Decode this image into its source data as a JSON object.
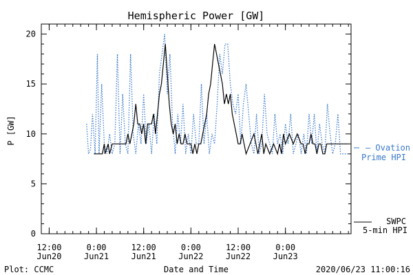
{
  "chart_data": {
    "type": "line",
    "title": "Hemispheric Power [GW]",
    "xlabel": "Date and Time",
    "ylabel": "P [GW]",
    "ylim": [
      0,
      21
    ],
    "yticks": [
      0,
      5,
      10,
      15,
      20
    ],
    "xlim": [
      "2020-06-20T10:00",
      "2020-06-23T16:40"
    ],
    "xticks": [
      {
        "at": "2020-06-20T12:00",
        "line1": "12:00",
        "line2": "Jun20"
      },
      {
        "at": "2020-06-21T00:00",
        "line1": "0:00",
        "line2": "Jun21"
      },
      {
        "at": "2020-06-21T12:00",
        "line1": "12:00",
        "line2": "Jun21"
      },
      {
        "at": "2020-06-22T00:00",
        "line1": "0:00",
        "line2": "Jun22"
      },
      {
        "at": "2020-06-22T12:00",
        "line1": "12:00",
        "line2": "Jun22"
      },
      {
        "at": "2020-06-23T00:00",
        "line1": "0:00",
        "line2": "Jun23"
      }
    ],
    "series": [
      {
        "name": "Ovation Prime HPI",
        "legend_line1": "— Ovation",
        "legend_line2": "Prime HPI",
        "color": "#3a78c8",
        "style": "dotted",
        "x": [
          "2020-06-20T21:30",
          "2020-06-20T22:00",
          "2020-06-20T22:30",
          "2020-06-20T23:00",
          "2020-06-20T23:40",
          "2020-06-21T00:15",
          "2020-06-21T00:40",
          "2020-06-21T01:20",
          "2020-06-21T02:00",
          "2020-06-21T02:40",
          "2020-06-21T03:20",
          "2020-06-21T04:00",
          "2020-06-21T04:40",
          "2020-06-21T05:20",
          "2020-06-21T06:00",
          "2020-06-21T06:40",
          "2020-06-21T07:20",
          "2020-06-21T08:00",
          "2020-06-21T08:40",
          "2020-06-21T09:20",
          "2020-06-21T10:00",
          "2020-06-21T10:40",
          "2020-06-21T11:20",
          "2020-06-21T12:00",
          "2020-06-21T12:40",
          "2020-06-21T13:20",
          "2020-06-21T14:00",
          "2020-06-21T14:40",
          "2020-06-21T15:20",
          "2020-06-21T16:00",
          "2020-06-21T16:40",
          "2020-06-21T17:20",
          "2020-06-21T18:00",
          "2020-06-21T18:40",
          "2020-06-21T19:20",
          "2020-06-21T20:00",
          "2020-06-21T20:40",
          "2020-06-21T21:20",
          "2020-06-21T22:00",
          "2020-06-21T22:40",
          "2020-06-21T23:20",
          "2020-06-22T00:00",
          "2020-06-22T00:40",
          "2020-06-22T01:20",
          "2020-06-22T02:00",
          "2020-06-22T02:40",
          "2020-06-22T03:20",
          "2020-06-22T04:00",
          "2020-06-22T04:40",
          "2020-06-22T05:20",
          "2020-06-22T06:00",
          "2020-06-22T06:40",
          "2020-06-22T07:20",
          "2020-06-22T08:00",
          "2020-06-22T08:40",
          "2020-06-22T09:20",
          "2020-06-22T10:00",
          "2020-06-22T10:40",
          "2020-06-22T11:20",
          "2020-06-22T12:00",
          "2020-06-22T12:40",
          "2020-06-22T13:20",
          "2020-06-22T14:00",
          "2020-06-22T14:40",
          "2020-06-22T15:20",
          "2020-06-22T16:00",
          "2020-06-22T16:40",
          "2020-06-22T17:20",
          "2020-06-22T18:00",
          "2020-06-22T18:40",
          "2020-06-22T19:20",
          "2020-06-22T20:00",
          "2020-06-22T20:40",
          "2020-06-22T21:20",
          "2020-06-22T22:00",
          "2020-06-22T22:40",
          "2020-06-22T23:20",
          "2020-06-23T00:00",
          "2020-06-23T00:40",
          "2020-06-23T01:20",
          "2020-06-23T02:00",
          "2020-06-23T02:40",
          "2020-06-23T03:20",
          "2020-06-23T04:00",
          "2020-06-23T04:40",
          "2020-06-23T05:20",
          "2020-06-23T06:00",
          "2020-06-23T06:40",
          "2020-06-23T07:20",
          "2020-06-23T08:00",
          "2020-06-23T08:40",
          "2020-06-23T09:20",
          "2020-06-23T10:00",
          "2020-06-23T10:40",
          "2020-06-23T11:20",
          "2020-06-23T12:00",
          "2020-06-23T12:40",
          "2020-06-23T13:20",
          "2020-06-23T14:00",
          "2020-06-23T14:40",
          "2020-06-23T15:20",
          "2020-06-23T16:00"
        ],
        "y": [
          11,
          8,
          8.5,
          12,
          8,
          18,
          8,
          15,
          9,
          8,
          10,
          8,
          9,
          18,
          8,
          14,
          9,
          8,
          18,
          10,
          8,
          11,
          9,
          14,
          9,
          11,
          8,
          12,
          9,
          16,
          18,
          20,
          14,
          18,
          11,
          8,
          12,
          9,
          13,
          8,
          10,
          8,
          12,
          9,
          9,
          15,
          9,
          12,
          8,
          10,
          9,
          13,
          18,
          16,
          19,
          19,
          15,
          13,
          12,
          14,
          9,
          13,
          15,
          12,
          9,
          8,
          12,
          8,
          9,
          14,
          10,
          9,
          8,
          12,
          9,
          10,
          8,
          11,
          9,
          12,
          8,
          9,
          10,
          8,
          10,
          8,
          12,
          9,
          12,
          8,
          11,
          9,
          8,
          13,
          10,
          8,
          9,
          12,
          8,
          8,
          8,
          8
        ]
      },
      {
        "name": "SWPC 5-min HPI",
        "legend_line1": "SWPC",
        "legend_line2": "5-min HPI",
        "color": "#000000",
        "style": "solid",
        "x": [
          "2020-06-20T23:20",
          "2020-06-21T01:30",
          "2020-06-21T02:00",
          "2020-06-21T02:10",
          "2020-06-21T03:00",
          "2020-06-21T03:20",
          "2020-06-21T04:00",
          "2020-06-21T04:20",
          "2020-06-21T07:30",
          "2020-06-21T08:00",
          "2020-06-21T08:30",
          "2020-06-21T09:00",
          "2020-06-21T09:30",
          "2020-06-21T10:00",
          "2020-06-21T10:30",
          "2020-06-21T11:00",
          "2020-06-21T11:30",
          "2020-06-21T12:00",
          "2020-06-21T12:30",
          "2020-06-21T13:00",
          "2020-06-21T14:00",
          "2020-06-21T14:30",
          "2020-06-21T15:00",
          "2020-06-21T15:30",
          "2020-06-21T16:00",
          "2020-06-21T16:30",
          "2020-06-21T17:00",
          "2020-06-21T17:30",
          "2020-06-21T18:00",
          "2020-06-21T18:30",
          "2020-06-21T19:00",
          "2020-06-21T19:30",
          "2020-06-21T20:00",
          "2020-06-21T20:30",
          "2020-06-21T21:00",
          "2020-06-21T21:30",
          "2020-06-21T22:00",
          "2020-06-21T22:30",
          "2020-06-21T23:00",
          "2020-06-21T23:30",
          "2020-06-22T00:00",
          "2020-06-22T00:30",
          "2020-06-22T01:00",
          "2020-06-22T01:30",
          "2020-06-22T02:00",
          "2020-06-22T02:30",
          "2020-06-22T03:00",
          "2020-06-22T03:30",
          "2020-06-22T04:00",
          "2020-06-22T04:30",
          "2020-06-22T05:00",
          "2020-06-22T05:30",
          "2020-06-22T06:00",
          "2020-06-22T06:30",
          "2020-06-22T07:00",
          "2020-06-22T07:30",
          "2020-06-22T08:00",
          "2020-06-22T08:30",
          "2020-06-22T09:00",
          "2020-06-22T09:30",
          "2020-06-22T10:00",
          "2020-06-22T10:30",
          "2020-06-22T11:00",
          "2020-06-22T11:30",
          "2020-06-22T12:00",
          "2020-06-22T12:30",
          "2020-06-22T13:00",
          "2020-06-22T13:30",
          "2020-06-22T14:00",
          "2020-06-22T15:00",
          "2020-06-22T16:00",
          "2020-06-22T16:30",
          "2020-06-22T17:00",
          "2020-06-22T17:30",
          "2020-06-22T18:00",
          "2020-06-22T18:30",
          "2020-06-22T19:00",
          "2020-06-22T20:00",
          "2020-06-22T21:00",
          "2020-06-22T22:00",
          "2020-06-22T22:30",
          "2020-06-22T23:00",
          "2020-06-22T23:30",
          "2020-06-23T00:00",
          "2020-06-23T01:00",
          "2020-06-23T02:00",
          "2020-06-23T03:00",
          "2020-06-23T04:00",
          "2020-06-23T04:30",
          "2020-06-23T05:00",
          "2020-06-23T05:30",
          "2020-06-23T06:00",
          "2020-06-23T06:30",
          "2020-06-23T07:00",
          "2020-06-23T07:30",
          "2020-06-23T08:00",
          "2020-06-23T08:30",
          "2020-06-23T09:00",
          "2020-06-23T09:30",
          "2020-06-23T10:00",
          "2020-06-23T10:30",
          "2020-06-23T11:00",
          "2020-06-23T12:00",
          "2020-06-23T13:00",
          "2020-06-23T14:00",
          "2020-06-23T15:00",
          "2020-06-23T16:00"
        ],
        "y": [
          8,
          8,
          9,
          8,
          9,
          8,
          9,
          9,
          9,
          10,
          9,
          10,
          11,
          13,
          11,
          11,
          10,
          11,
          9,
          11,
          11,
          12,
          10,
          12,
          14,
          15,
          17,
          19,
          16,
          13,
          11,
          10,
          11,
          9,
          10,
          9,
          9,
          10,
          9,
          9,
          9,
          8,
          9,
          8,
          9,
          9,
          10,
          11,
          12,
          14,
          15,
          17,
          19,
          18,
          17,
          16,
          15,
          13,
          14,
          13,
          14,
          12,
          11,
          10,
          9,
          9,
          10,
          9,
          8,
          9,
          10,
          9,
          8,
          9,
          10,
          8,
          9,
          8,
          9,
          8,
          9,
          8,
          10,
          9,
          10,
          9,
          10,
          9,
          9,
          8,
          9,
          9,
          10,
          9,
          9,
          8,
          9,
          9,
          8,
          8,
          9,
          9,
          9,
          9,
          9,
          9,
          9
        ]
      }
    ]
  },
  "footer": {
    "left": "Plot: CCMC",
    "right": "2020/06/23 11:00:16"
  },
  "colors": {
    "ovation": "#3a78c8",
    "swpc": "#000000",
    "axis": "#000000"
  }
}
